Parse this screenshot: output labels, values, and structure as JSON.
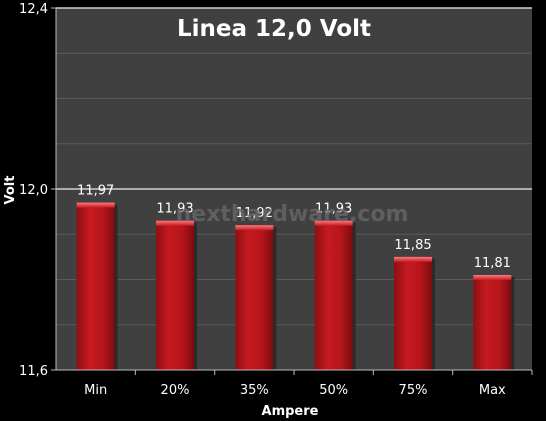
{
  "chart_data": {
    "type": "bar",
    "title": "Linea 12,0 Volt",
    "xlabel": "Ampere",
    "ylabel": "Volt",
    "categories": [
      "Min",
      "20%",
      "35%",
      "50%",
      "75%",
      "Max"
    ],
    "values": [
      11.97,
      11.93,
      11.92,
      11.93,
      11.85,
      11.81
    ],
    "value_labels": [
      "11,97",
      "11,93",
      "11,92",
      "11,93",
      "11,85",
      "11,81"
    ],
    "ylim": [
      11.6,
      12.4
    ],
    "yticks": [
      11.6,
      12.0,
      12.4
    ],
    "ytick_labels": [
      "11,6",
      "12,0",
      "12,4"
    ],
    "grid": true,
    "legend": "none",
    "colors": {
      "background": "#000000",
      "plot_area": "#404040",
      "grid_minor": "#5a5a5a",
      "grid_major": "#cfcfcf",
      "bar": "#b5151a",
      "bar_highlight": "#e0484c",
      "bar_shadow": "#7a0c10",
      "text": "#ffffff"
    }
  },
  "watermark": "nexthardware.com"
}
